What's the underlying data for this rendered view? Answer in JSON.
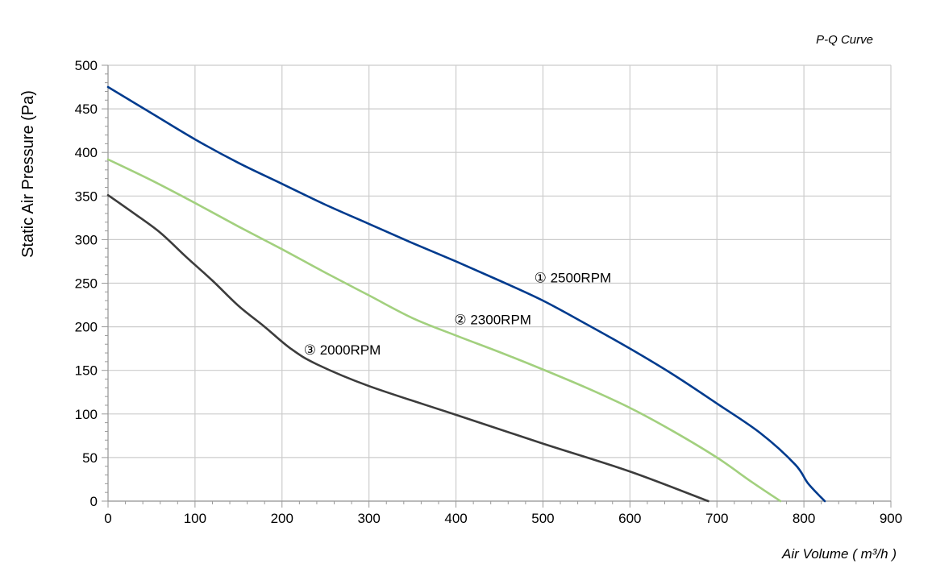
{
  "chart_data": {
    "type": "line",
    "title": "P-Q Curve",
    "xlabel": "Air Volume ( m³/h )",
    "ylabel": "Static Air Pressure  (Pa)",
    "xlim": [
      0,
      900
    ],
    "ylim": [
      0,
      500
    ],
    "x_ticks": [
      "0",
      "100",
      "200",
      "300",
      "400",
      "500",
      "600",
      "700",
      "800",
      "900"
    ],
    "y_ticks": [
      "0",
      "50",
      "100",
      "150",
      "200",
      "250",
      "300",
      "350",
      "400",
      "450",
      "500"
    ],
    "grid": true,
    "legend": "none",
    "series": [
      {
        "name": "① 2500RPM",
        "color": "#003b8e",
        "points": [
          [
            0,
            475
          ],
          [
            50,
            445
          ],
          [
            100,
            415
          ],
          [
            150,
            388
          ],
          [
            200,
            364
          ],
          [
            250,
            340
          ],
          [
            300,
            318
          ],
          [
            350,
            296
          ],
          [
            400,
            275
          ],
          [
            450,
            253
          ],
          [
            500,
            230
          ],
          [
            550,
            203
          ],
          [
            600,
            175
          ],
          [
            650,
            145
          ],
          [
            700,
            112
          ],
          [
            750,
            78
          ],
          [
            790,
            42
          ],
          [
            805,
            20
          ],
          [
            824,
            0
          ]
        ]
      },
      {
        "name": "② 2300RPM",
        "color": "#a2d07e",
        "points": [
          [
            0,
            392
          ],
          [
            50,
            368
          ],
          [
            100,
            342
          ],
          [
            150,
            315
          ],
          [
            200,
            289
          ],
          [
            250,
            262
          ],
          [
            300,
            236
          ],
          [
            350,
            210
          ],
          [
            400,
            190
          ],
          [
            450,
            171
          ],
          [
            500,
            151
          ],
          [
            550,
            130
          ],
          [
            600,
            107
          ],
          [
            650,
            80
          ],
          [
            700,
            50
          ],
          [
            740,
            22
          ],
          [
            773,
            0
          ]
        ]
      },
      {
        "name": "③ 2000RPM",
        "color": "#3c3c3c",
        "points": [
          [
            0,
            351
          ],
          [
            30,
            330
          ],
          [
            60,
            308
          ],
          [
            90,
            280
          ],
          [
            120,
            253
          ],
          [
            150,
            224
          ],
          [
            180,
            200
          ],
          [
            210,
            175
          ],
          [
            240,
            157
          ],
          [
            300,
            132
          ],
          [
            400,
            99
          ],
          [
            500,
            66
          ],
          [
            600,
            34
          ],
          [
            690,
            0
          ]
        ]
      }
    ]
  }
}
